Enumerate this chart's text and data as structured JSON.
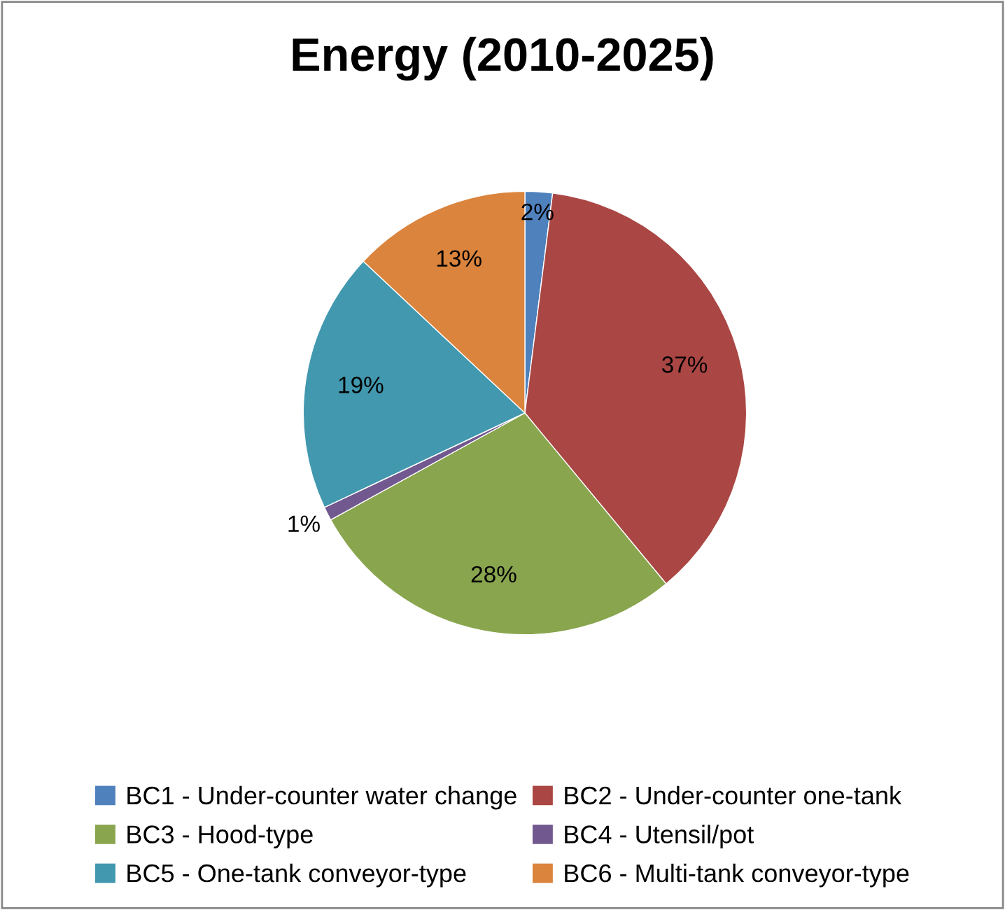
{
  "chart_data": {
    "type": "pie",
    "title": "Energy (2010-2025)",
    "categories": [
      "BC1 - Under-counter water change",
      "BC2 - Under-counter one-tank",
      "BC3 - Hood-type",
      "BC4 - Utensil/pot",
      "BC5 - One-tank conveyor-type",
      "BC6 - Multi-tank conveyor-type"
    ],
    "values": [
      2,
      37,
      28,
      1,
      19,
      13
    ],
    "colors": [
      "#4f81bd",
      "#aa4643",
      "#89a54e",
      "#71588f",
      "#4198af",
      "#db843d"
    ],
    "value_labels": [
      "2%",
      "37%",
      "28%",
      "1%",
      "19%",
      "13%"
    ],
    "legend": "bottom"
  }
}
